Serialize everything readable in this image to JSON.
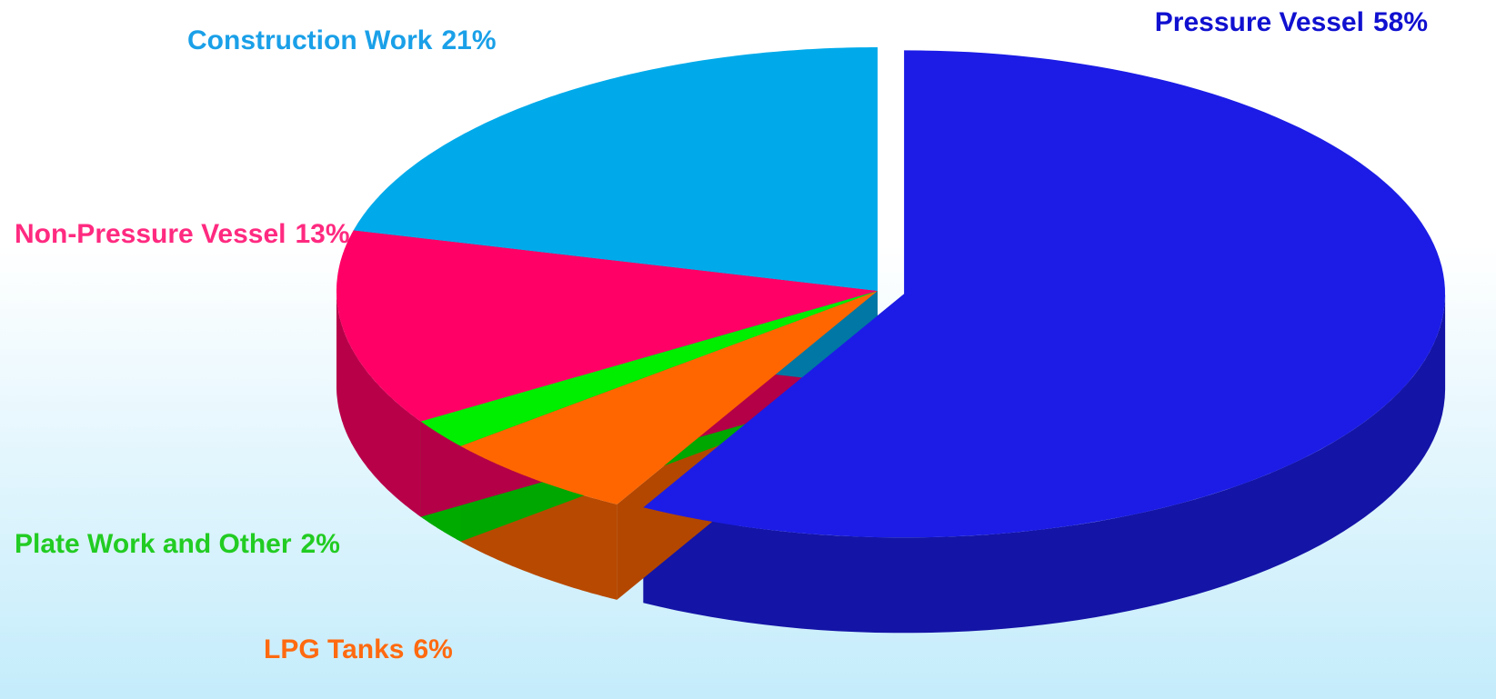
{
  "chart_data": {
    "type": "pie3d",
    "categories": [
      "Pressure Vessel",
      "LPG Tanks",
      "Plate Work and Other",
      "Non-Pressure Vessel",
      "Construction Work"
    ],
    "values": [
      58,
      6,
      2,
      13,
      21
    ],
    "value_labels": [
      "58%",
      "6%",
      "2%",
      "13%",
      "21%"
    ],
    "colors": [
      "#1c1ce6",
      "#ff6600",
      "#00ee00",
      "#ff0066",
      "#00aaea"
    ],
    "label_colors": [
      "#1010d0",
      "#ff6a10",
      "#22cc22",
      "#ff2a80",
      "#1aa0e8"
    ]
  }
}
